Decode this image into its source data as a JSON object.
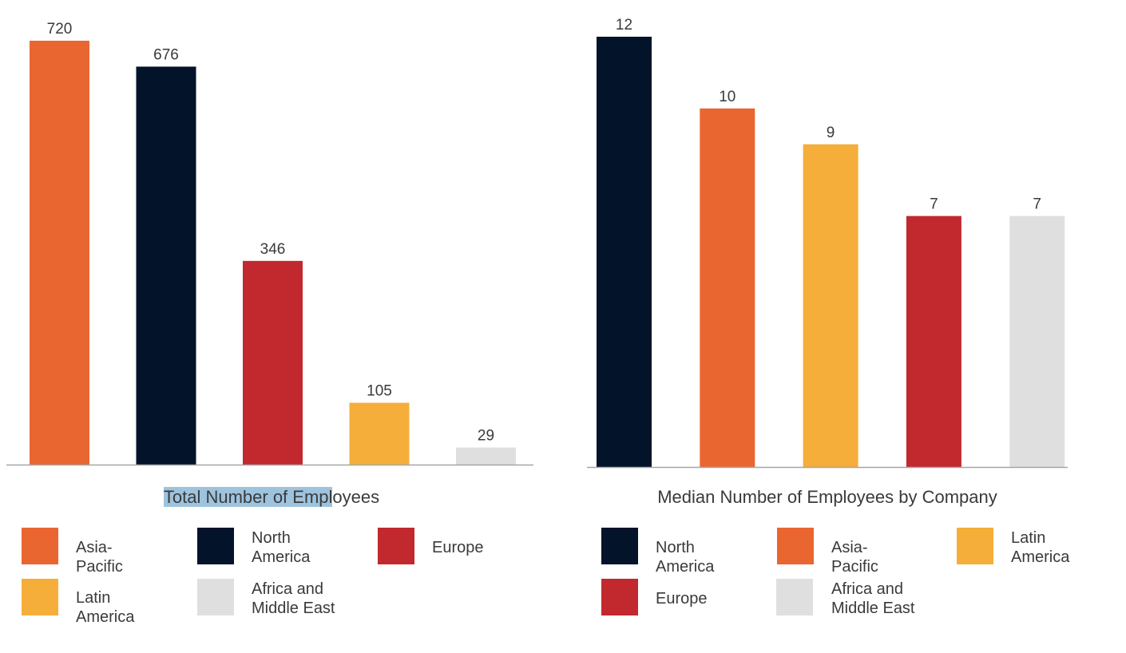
{
  "chart_data": [
    {
      "type": "bar",
      "title": "Total Number of Employees",
      "categories": [
        "Asia-Pacific",
        "North America",
        "Europe",
        "Latin America",
        "Africa and Middle East"
      ],
      "values": [
        720,
        676,
        346,
        105,
        29
      ],
      "colors": [
        "#e96631",
        "#03132a",
        "#c1292e",
        "#f5ae3a",
        "#dfdfe0"
      ],
      "ylim": [
        0,
        720
      ],
      "grid": false,
      "legend_position": "bottom",
      "legend": [
        {
          "label": "Asia-Pacific",
          "color": "#e96631"
        },
        {
          "label": "North America",
          "color": "#03132a"
        },
        {
          "label": "Europe",
          "color": "#c1292e"
        },
        {
          "label": "Latin America",
          "color": "#f5ae3a"
        },
        {
          "label": "Africa and Middle East",
          "color": "#dfdfe0"
        }
      ]
    },
    {
      "type": "bar",
      "title": "Median Number of Employees by Company",
      "categories": [
        "North America",
        "Asia-Pacific",
        "Latin America",
        "Europe",
        "Africa and Middle East"
      ],
      "values": [
        12,
        10,
        9,
        7,
        7
      ],
      "colors": [
        "#03132a",
        "#e96631",
        "#f5ae3a",
        "#c1292e",
        "#dfdfe0"
      ],
      "ylim": [
        0,
        12
      ],
      "grid": false,
      "legend_position": "bottom",
      "legend": [
        {
          "label": "North America",
          "color": "#03132a"
        },
        {
          "label": "Asia-Pacific",
          "color": "#e96631"
        },
        {
          "label": "Latin America",
          "color": "#f5ae3a"
        },
        {
          "label": "Europe",
          "color": "#c1292e"
        },
        {
          "label": "Africa and Middle East",
          "color": "#dfdfe0"
        }
      ]
    }
  ]
}
